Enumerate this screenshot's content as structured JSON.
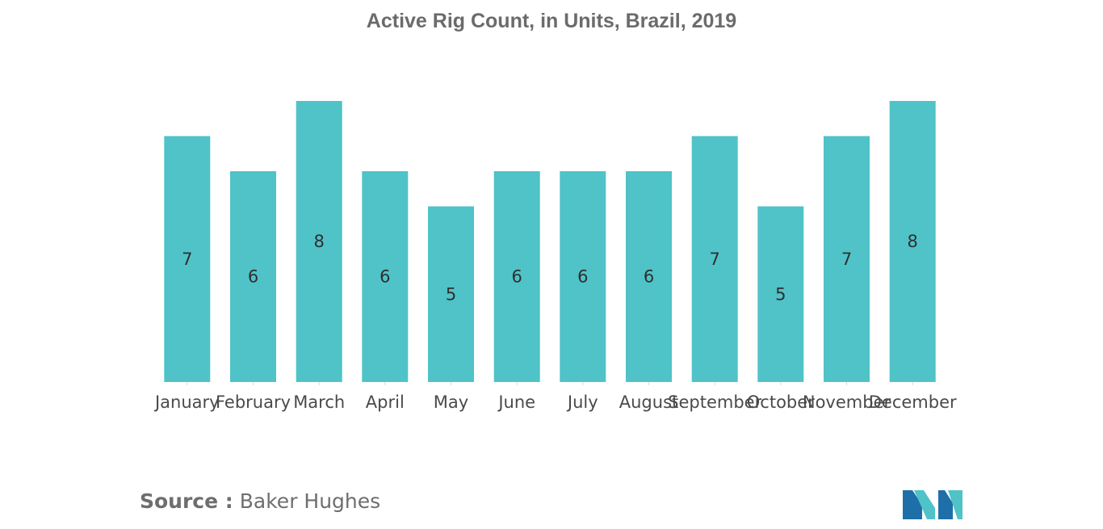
{
  "title": "Active Rig Count, in Units, Brazil, 2019",
  "source": {
    "label": "Source :",
    "text": "Baker Hughes"
  },
  "colors": {
    "bar": "#4fc3c8",
    "logo_dark": "#1e6fa8",
    "logo_light": "#4fc3c8"
  },
  "logo": {
    "icon": "mordor-intelligence-logo"
  },
  "chart_data": {
    "type": "bar",
    "title": "Active Rig Count, in Units, Brazil, 2019",
    "xlabel": "",
    "ylabel": "",
    "categories": [
      "January",
      "February",
      "March",
      "April",
      "May",
      "June",
      "July",
      "August",
      "September",
      "October",
      "November",
      "December"
    ],
    "values": [
      7,
      6,
      8,
      6,
      5,
      6,
      6,
      6,
      7,
      5,
      7,
      8
    ],
    "ylim": [
      0,
      8
    ],
    "grid": false,
    "legend": "none",
    "data_labels": true
  }
}
